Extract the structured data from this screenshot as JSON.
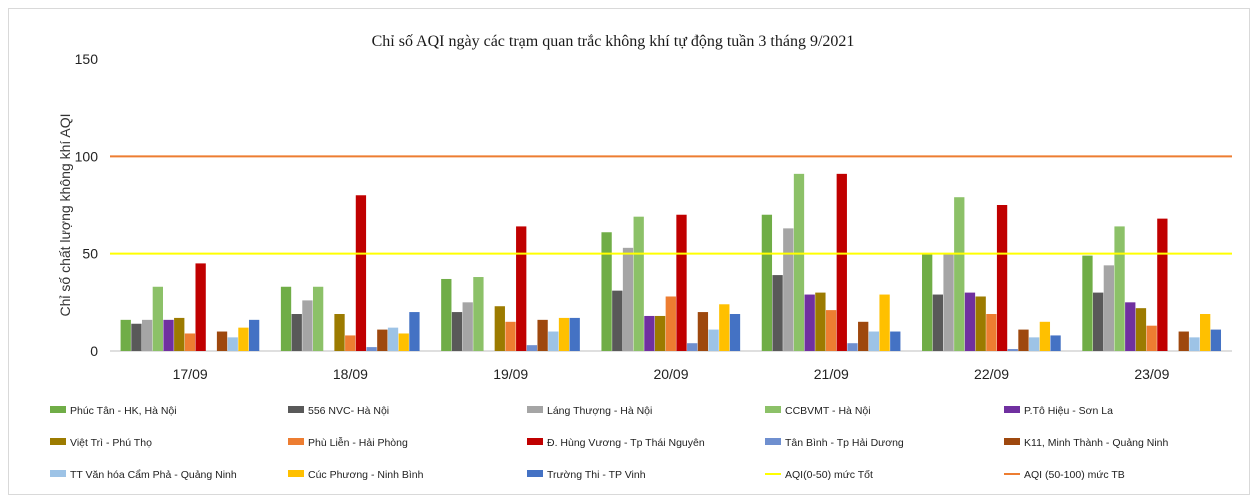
{
  "chart_data": {
    "type": "bar",
    "title": "Chỉ số AQI ngày các trạm quan trắc không khí tự động tuần 3 tháng 9/2021",
    "xlabel": "",
    "ylabel": "Chỉ số chất lượng không khí AQI",
    "ylim": [
      0,
      150
    ],
    "yticks": [
      "0",
      "50",
      "100",
      "150"
    ],
    "grid": false,
    "legend_position": "bottom",
    "categories": [
      "17/09",
      "18/09",
      "19/09",
      "20/09",
      "21/09",
      "22/09",
      "23/09"
    ],
    "series": [
      {
        "name": "Phúc Tân - HK, Hà Nội",
        "color": "#70ad47",
        "values": [
          16,
          33,
          37,
          61,
          70,
          50,
          49
        ]
      },
      {
        "name": "556 NVC- Hà Nội",
        "color": "#595959",
        "values": [
          14,
          19,
          20,
          31,
          39,
          29,
          30
        ]
      },
      {
        "name": "Láng Thượng - Hà Nội",
        "color": "#a5a5a5",
        "values": [
          16,
          26,
          25,
          53,
          63,
          50,
          44
        ]
      },
      {
        "name": "CCBVMT - Hà Nội",
        "color": "#8cc168",
        "values": [
          33,
          33,
          38,
          69,
          91,
          79,
          64
        ]
      },
      {
        "name": "P.Tô Hiệu - Sơn La",
        "color": "#7030a0",
        "values": [
          16,
          null,
          null,
          18,
          29,
          30,
          25
        ]
      },
      {
        "name": "Việt Trì  - Phú Thọ",
        "color": "#9c7b00",
        "values": [
          17,
          19,
          23,
          18,
          30,
          28,
          22
        ]
      },
      {
        "name": "Phù Liễn - Hải Phòng",
        "color": "#ed7d31",
        "values": [
          9,
          8,
          15,
          28,
          21,
          19,
          13
        ]
      },
      {
        "name": "Đ. Hùng Vương - Tp Thái Nguyên",
        "color": "#c00000",
        "values": [
          45,
          80,
          64,
          70,
          91,
          75,
          68
        ]
      },
      {
        "name": "Tân Bình - Tp Hải Dương",
        "color": "#6f8fcf",
        "values": [
          null,
          2,
          3,
          4,
          4,
          1,
          null
        ]
      },
      {
        "name": "K11, Minh Thành - Quảng Ninh",
        "color": "#9e480e",
        "values": [
          10,
          11,
          16,
          20,
          15,
          11,
          10
        ]
      },
      {
        "name": "TT Văn hóa Cẩm Phả - Quảng Ninh",
        "color": "#9dc3e6",
        "values": [
          7,
          12,
          10,
          11,
          10,
          7,
          7
        ]
      },
      {
        "name": "Cúc Phương - Ninh Bình",
        "color": "#ffc000",
        "values": [
          12,
          9,
          17,
          24,
          29,
          15,
          19
        ]
      },
      {
        "name": "Trường Thi - TP Vinh",
        "color": "#4472c4",
        "values": [
          16,
          20,
          17,
          19,
          10,
          8,
          11
        ]
      }
    ],
    "reference_lines": [
      {
        "name": "AQI(0-50) mức Tốt",
        "value": 50,
        "color": "#ffff00"
      },
      {
        "name": "AQI (50-100) mức TB",
        "value": 100,
        "color": "#ed7d31"
      }
    ]
  }
}
